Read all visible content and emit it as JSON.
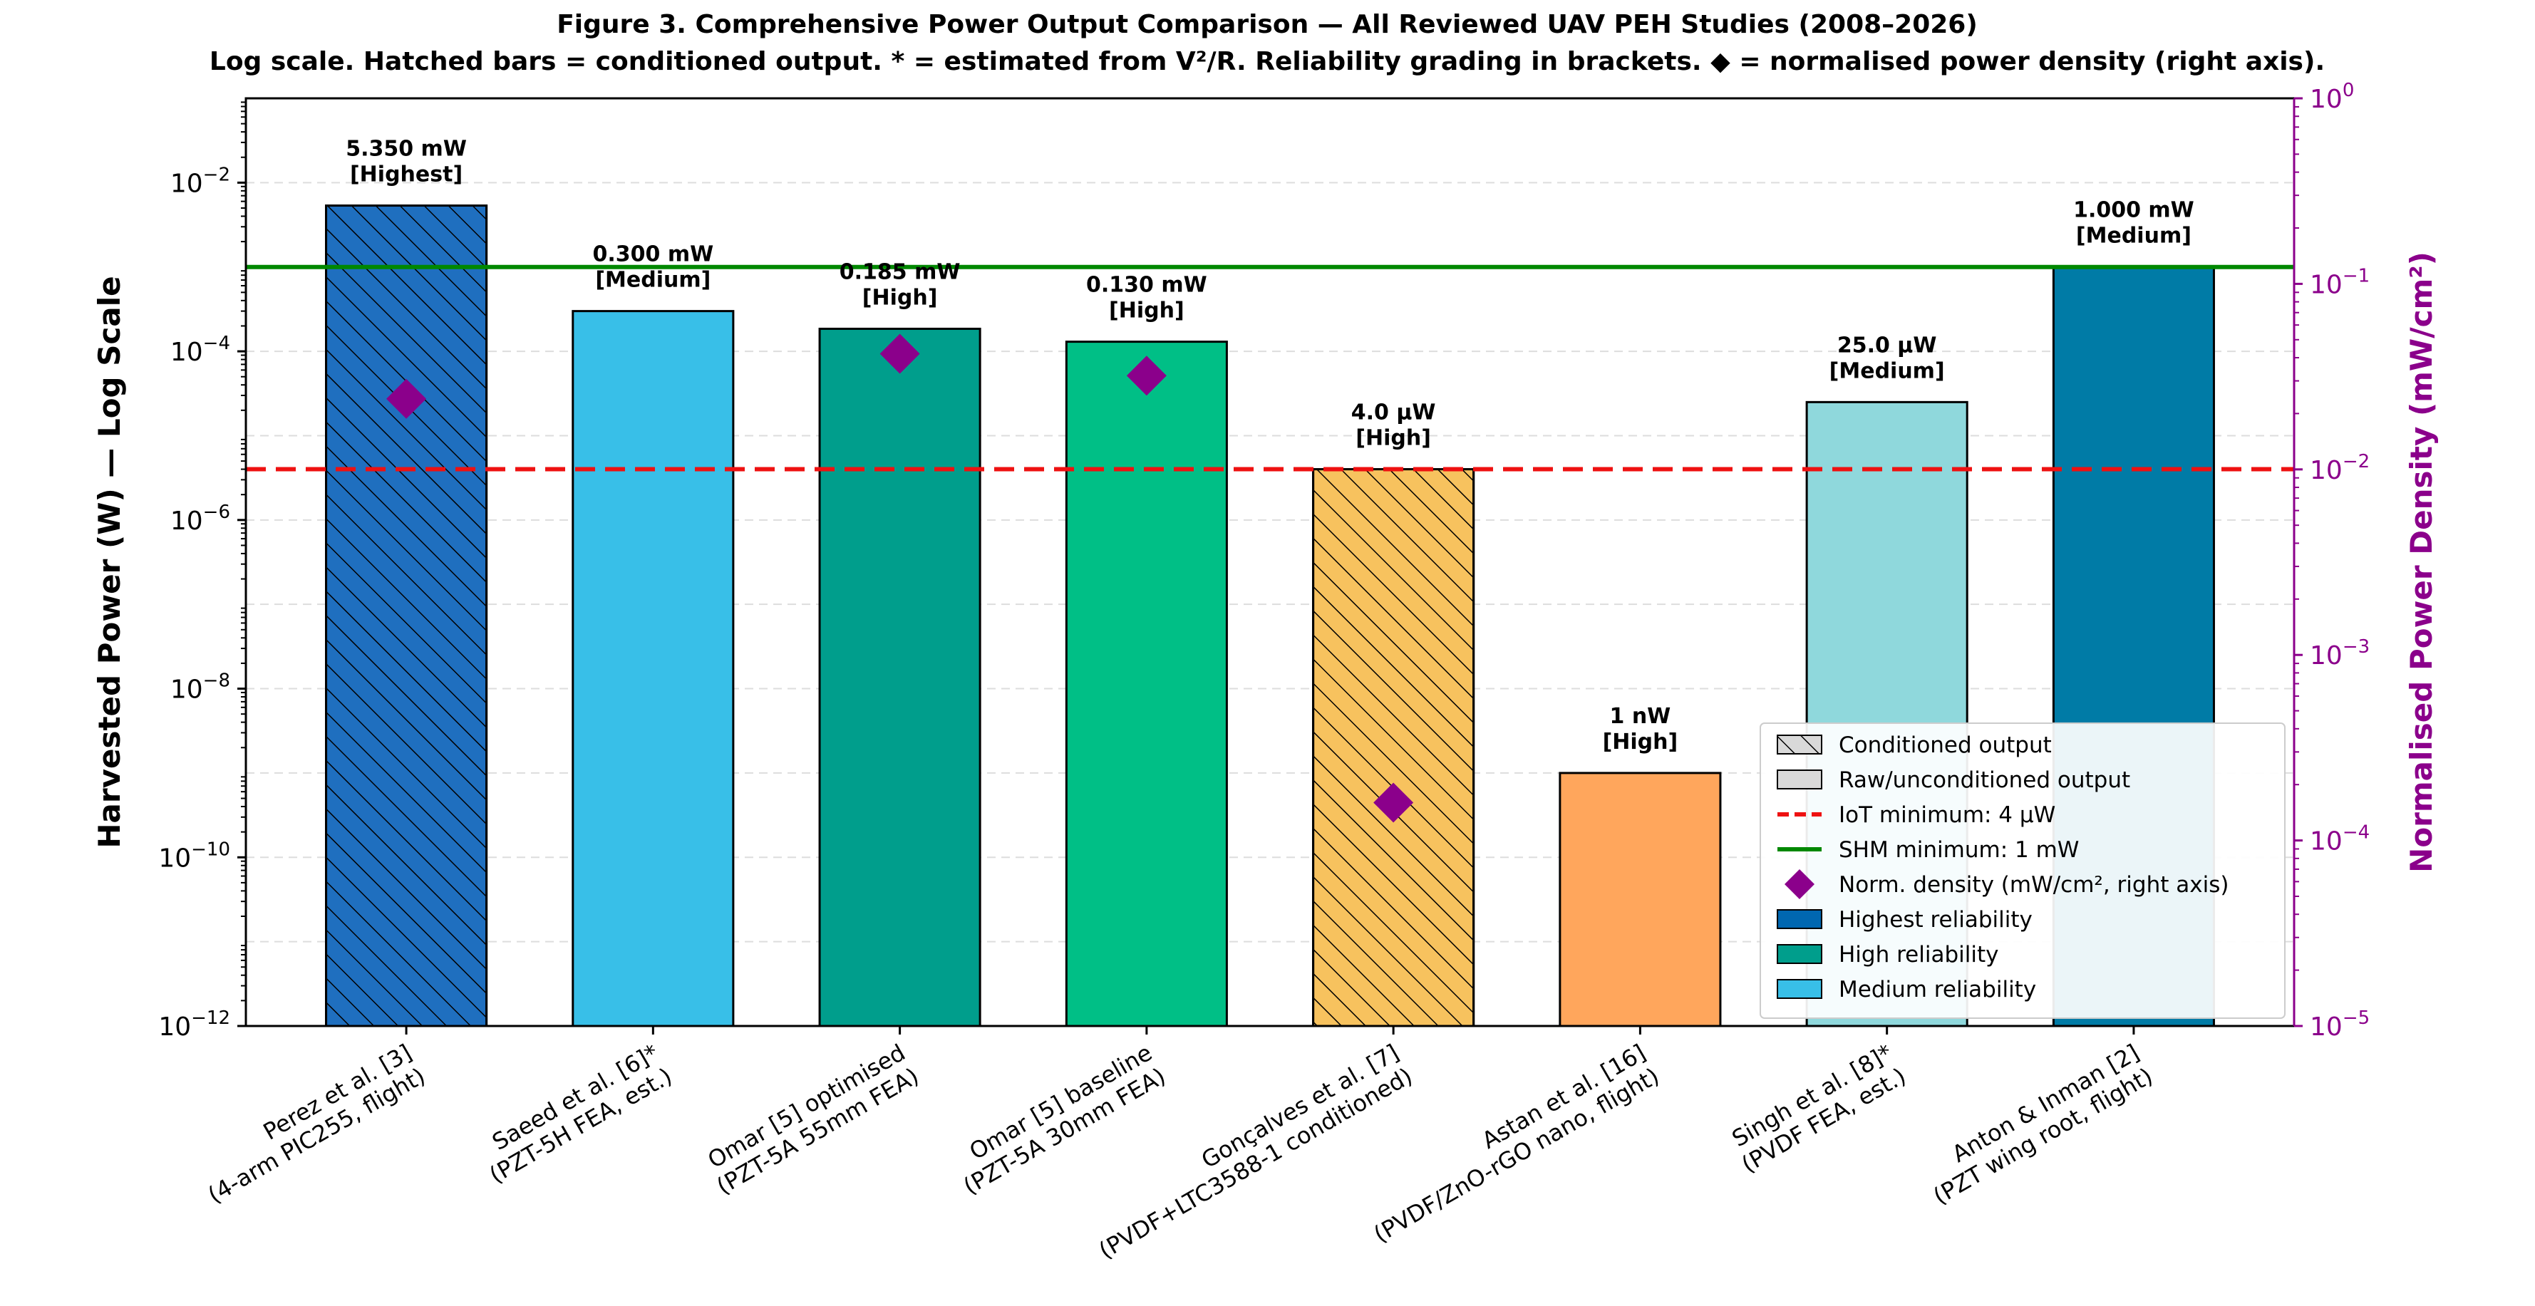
{
  "chart_data": {
    "type": "bar",
    "title": "Figure 3. Comprehensive Power Output Comparison — All Reviewed UAV PEH Studies (2008–2026)",
    "subtitle": "Log scale. Hatched bars = conditioned output. * = estimated from V²/R. Reliability grading in brackets. ◆ = normalised power density (right axis).",
    "ylabel": "Harvested Power (W) — Log Scale",
    "y2label": "Normalised Power Density (mW/cm²)",
    "yscale": "log",
    "ylim": [
      1e-12,
      0.1
    ],
    "y2lim": [
      1e-05,
      1
    ],
    "yticks": [
      {
        "value": 1e-12,
        "base": "10",
        "exp": "−12"
      },
      {
        "value": 1e-10,
        "base": "10",
        "exp": "−10"
      },
      {
        "value": 1e-08,
        "base": "10",
        "exp": "−8"
      },
      {
        "value": 1e-06,
        "base": "10",
        "exp": "−6"
      },
      {
        "value": 0.0001,
        "base": "10",
        "exp": "−4"
      },
      {
        "value": 0.01,
        "base": "10",
        "exp": "−2"
      }
    ],
    "y2ticks": [
      {
        "value": 1e-05,
        "base": "10",
        "exp": "−5"
      },
      {
        "value": 0.0001,
        "base": "10",
        "exp": "−4"
      },
      {
        "value": 0.001,
        "base": "10",
        "exp": "−3"
      },
      {
        "value": 0.01,
        "base": "10",
        "exp": "−2"
      },
      {
        "value": 0.1,
        "base": "10",
        "exp": "−1"
      },
      {
        "value": 1,
        "base": "10",
        "exp": "0"
      }
    ],
    "grid": "horizontal dashed",
    "legend_position": "lower-right",
    "bars": [
      {
        "cat1": "Perez et al. [3]",
        "cat2": "(4-arm PIC255, flight)",
        "value": 0.00535,
        "label": "5.350 mW",
        "grade": "[Highest]",
        "hatched": true,
        "color": "#1f6fbf",
        "density": 0.024
      },
      {
        "cat1": "Saeed et al. [6]*",
        "cat2": "(PZT-5H FEA, est.)",
        "value": 0.0003,
        "label": "0.300 mW",
        "grade": "[Medium]",
        "hatched": false,
        "color": "#38bfe8"
      },
      {
        "cat1": "Omar [5] optimised",
        "cat2": "(PZT-5A 55mm FEA)",
        "value": 0.000185,
        "label": "0.185 mW",
        "grade": "[High]",
        "hatched": false,
        "color": "#009e8c",
        "density": 0.042
      },
      {
        "cat1": "Omar [5] baseline",
        "cat2": "(PZT-5A 30mm FEA)",
        "value": 0.00013,
        "label": "0.130 mW",
        "grade": "[High]",
        "hatched": false,
        "color": "#00bf86",
        "density": 0.032
      },
      {
        "cat1": "Gonçalves et al. [7]",
        "cat2": "(PVDF+LTC3588-1 conditioned)",
        "value": 4e-06,
        "label": "4.0 µW",
        "grade": "[High]",
        "hatched": true,
        "color": "#f7c25e",
        "density": 0.00016
      },
      {
        "cat1": "Astan et al. [16]",
        "cat2": "(PVDF/ZnO-rGO nano, flight)",
        "value": 1e-09,
        "label": "1 nW",
        "grade": "[High]",
        "hatched": false,
        "color": "#ffa65c"
      },
      {
        "cat1": "Singh et al. [8]*",
        "cat2": "(PVDF FEA, est.)",
        "value": 2.5e-05,
        "label": "25.0 µW",
        "grade": "[Medium]",
        "hatched": false,
        "color": "#8fd8dc"
      },
      {
        "cat1": "Anton & Inman [2]",
        "cat2": "(PZT wing root, flight)",
        "value": 0.001,
        "label": "1.000 mW",
        "grade": "[Medium]",
        "hatched": false,
        "color": "#007ba6"
      }
    ],
    "reference_lines": [
      {
        "name": "IoT minimum: 4 µW",
        "value": 4e-06,
        "color": "#ee1111",
        "style": "dashed"
      },
      {
        "name": "SHM minimum: 1 mW",
        "value": 0.001,
        "color": "#008800",
        "style": "solid"
      }
    ],
    "legend": [
      {
        "kind": "patch-hatch",
        "label": "Conditioned output",
        "color": "#d9d9d9"
      },
      {
        "kind": "patch",
        "label": "Raw/unconditioned output",
        "color": "#d9d9d9"
      },
      {
        "kind": "line-dashed",
        "label": "IoT minimum: 4 µW",
        "color": "#ee1111"
      },
      {
        "kind": "line",
        "label": "SHM minimum: 1 mW",
        "color": "#008800"
      },
      {
        "kind": "diamond",
        "label": "Norm. density (mW/cm², right axis)",
        "color": "#8b008b"
      },
      {
        "kind": "patch",
        "label": "Highest reliability",
        "color": "#0067b1"
      },
      {
        "kind": "patch",
        "label": "High reliability",
        "color": "#009e8c"
      },
      {
        "kind": "patch",
        "label": "Medium reliability",
        "color": "#38bfe8"
      }
    ],
    "density_color": "#8b008b"
  }
}
